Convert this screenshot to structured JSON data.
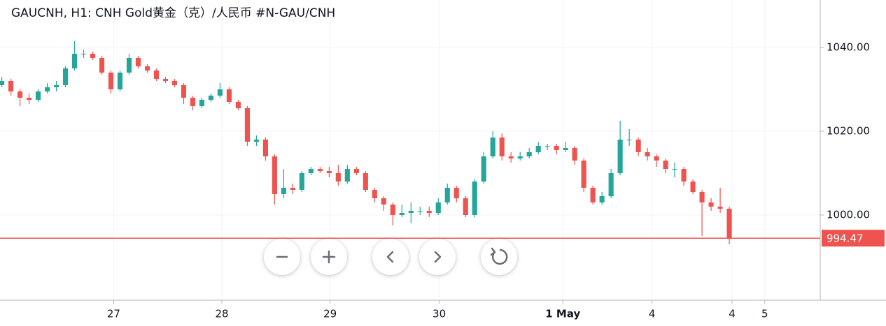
{
  "chart_data": {
    "type": "candlestick",
    "title": "GAUCNH, H1: CNH Gold黄金（克）/人民币 #N-GAU/CNH",
    "up_color": "#26a69a",
    "down_color": "#ef5350",
    "grid": true,
    "open": [
      1031,
      1032,
      1029.5,
      1028,
      1027.5,
      1029.5,
      1030.5,
      1031,
      1035,
      1038.5,
      1038.5,
      1037.5,
      1034,
      1030,
      1034,
      1037.5,
      1035.5,
      1034.5,
      1032.5,
      1032,
      1031,
      1028,
      1026,
      1027.5,
      1028.5,
      1030,
      1027,
      1025.5,
      1017.5,
      1018,
      1014,
      1005,
      1006.5,
      1006,
      1010,
      1011,
      1010.5,
      1010,
      1008,
      1011,
      1010,
      1006,
      1004,
      1002.5,
      1000,
      1000.5,
      1001,
      1001,
      1000.5,
      1003,
      1006.5,
      1004,
      1000,
      1008,
      1014,
      1018.5,
      1014,
      1013.5,
      1014,
      1015,
      1016.5,
      1016.5,
      1015.5,
      1016,
      1013,
      1006.5,
      1003,
      1004.5,
      1010,
      1018,
      1018,
      1015,
      1014,
      1013,
      1011,
      1011,
      1008,
      1005.5,
      1003,
      1002,
      1001.5
    ],
    "high": [
      1033,
      1032.5,
      1030,
      1029,
      1030,
      1031.5,
      1032,
      1035.5,
      1041.5,
      1039.5,
      1039,
      1038,
      1034.5,
      1034.5,
      1038.5,
      1038,
      1036,
      1035,
      1033,
      1032.5,
      1031.5,
      1028.5,
      1028,
      1029,
      1031.5,
      1030.5,
      1027.5,
      1026,
      1019,
      1018.5,
      1014.5,
      1011,
      1007.5,
      1010.5,
      1011.5,
      1011.5,
      1011.5,
      1012,
      1012,
      1011.5,
      1010.5,
      1006.5,
      1004.5,
      1003,
      1002.5,
      1003,
      1002,
      1002,
      1004,
      1007.5,
      1007,
      1004.5,
      1008.5,
      1015,
      1020,
      1019.5,
      1015,
      1015,
      1016,
      1017.5,
      1017,
      1017,
      1017.5,
      1016.5,
      1013.5,
      1007,
      1005.5,
      1011,
      1022.5,
      1020.5,
      1018.5,
      1016,
      1014.5,
      1013.5,
      1012.5,
      1011.5,
      1008.5,
      1006,
      1004,
      1006.5,
      1002
    ],
    "low": [
      1030.5,
      1028.5,
      1026,
      1026.5,
      1027,
      1029,
      1029.5,
      1030.5,
      1034.5,
      1037.5,
      1037,
      1033.5,
      1029,
      1029.5,
      1033.5,
      1035,
      1034,
      1032,
      1031.5,
      1030.5,
      1026.5,
      1025,
      1025.5,
      1027,
      1028,
      1026.5,
      1025,
      1016.5,
      1016.5,
      1013,
      1002.5,
      1004,
      1005,
      1005.5,
      1009.5,
      1010,
      1009,
      1007,
      1007.5,
      1009.5,
      1005.5,
      1003,
      1001,
      997.5,
      999.5,
      998,
      1000,
      999.5,
      1000,
      1002.5,
      1003,
      999.5,
      999.5,
      1007.5,
      1013.5,
      1013,
      1012.5,
      1013,
      1013.5,
      1014.5,
      1015.5,
      1014.5,
      1015,
      1012,
      1005.5,
      1002.5,
      1002.5,
      1004,
      1009.5,
      1016.5,
      1014,
      1013,
      1011.5,
      1010,
      1009,
      1007,
      1005,
      995,
      1001,
      1000.5,
      993
    ],
    "close": [
      1032,
      1029.5,
      1028,
      1027.5,
      1029.5,
      1030.5,
      1031,
      1035,
      1038.5,
      1038.5,
      1037.5,
      1034,
      1030,
      1034,
      1037.5,
      1035.5,
      1034.5,
      1032.5,
      1032,
      1031,
      1028,
      1026,
      1027.5,
      1028.5,
      1030,
      1027,
      1025.5,
      1017.5,
      1018,
      1014,
      1005,
      1006.5,
      1006,
      1010,
      1011,
      1010.5,
      1010,
      1008,
      1011,
      1010,
      1006,
      1004,
      1002.5,
      1000,
      1000.5,
      1001,
      1001,
      1000.5,
      1003,
      1006.5,
      1004,
      1000,
      1008,
      1014,
      1018.5,
      1014,
      1013.5,
      1014,
      1015,
      1016.5,
      1016.5,
      1015.5,
      1016,
      1013,
      1006.5,
      1003,
      1004.5,
      1010,
      1018,
      1018,
      1015,
      1014,
      1013,
      1011,
      1011,
      1008,
      1005.5,
      1003,
      1002,
      1001.5,
      994.47
    ],
    "last_price": 994.47,
    "ylim": [
      979.67,
      1051.33
    ],
    "yticks": [
      {
        "value": 1000,
        "label": "1000.00"
      },
      {
        "value": 1020,
        "label": "1020.00"
      },
      {
        "value": 1040,
        "label": "1040.00"
      }
    ],
    "xlim": [
      -0.2,
      90
    ],
    "xticks": [
      {
        "value": 12.3,
        "label": "27"
      },
      {
        "value": 24.2,
        "label": "28"
      },
      {
        "value": 36.1,
        "label": "29"
      },
      {
        "value": 48.1,
        "label": "30"
      },
      {
        "value": 61.7,
        "label": "1 May"
      },
      {
        "value": 71.5,
        "label": "4"
      },
      {
        "value": 80.3,
        "label": "4"
      },
      {
        "value": 83.9,
        "label": "5"
      }
    ]
  }
}
